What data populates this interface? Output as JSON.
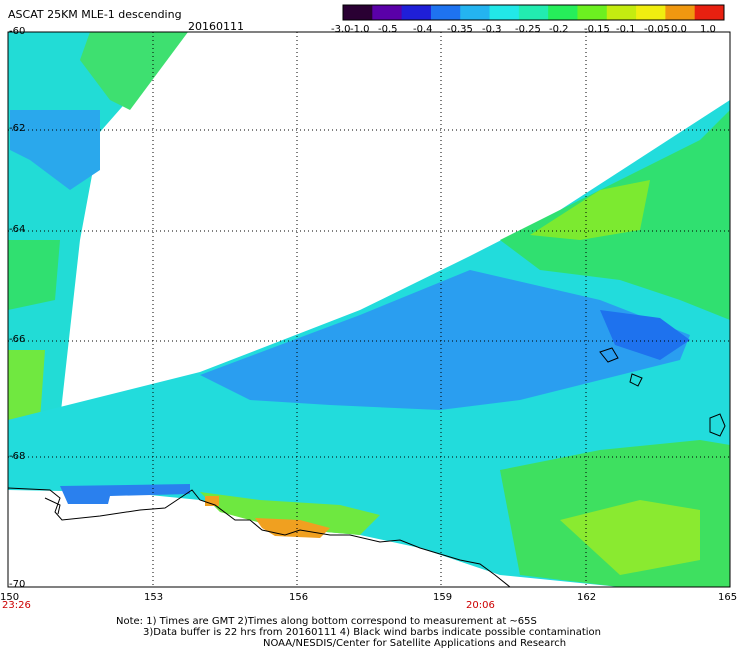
{
  "header": {
    "title": "ASCAT 25KM MLE-1 descending",
    "date": "20160111"
  },
  "colorbar": {
    "labels": [
      "-3.0",
      "-1.0",
      "-0.5",
      "-0.4",
      "-0.35",
      "-0.3",
      "-0.25",
      "-0.2",
      "-0.15",
      "-0.1",
      "-0.05",
      "0.0",
      "1.0"
    ],
    "colors": [
      "#2a0033",
      "#5a00a8",
      "#1f1fd8",
      "#1e73f0",
      "#24b4f0",
      "#22e8e8",
      "#22ecb0",
      "#26ee5a",
      "#6cf020",
      "#c4ec10",
      "#f0ee10",
      "#f09810",
      "#e82010"
    ]
  },
  "map": {
    "lat_labels": [
      "-60",
      "-62",
      "-64",
      "-66",
      "-68",
      "-70"
    ],
    "lon_labels": [
      "150",
      "153",
      "156",
      "159",
      "162",
      "165"
    ],
    "times": {
      "left": "23:26",
      "mid": "20:06"
    },
    "colors": {
      "coast": "#000000",
      "grid": "#000000",
      "time_text": "#cc0000"
    }
  },
  "footer": {
    "line1": "Note: 1) Times are GMT 2)Times along bottom correspond to measurement at ~65S",
    "line2": "3)Data buffer is 22 hrs from 20160111 4) Black wind barbs indicate possible contamination",
    "line3": "NOAA/NESDIS/Center for Satellite Applications and Research"
  }
}
